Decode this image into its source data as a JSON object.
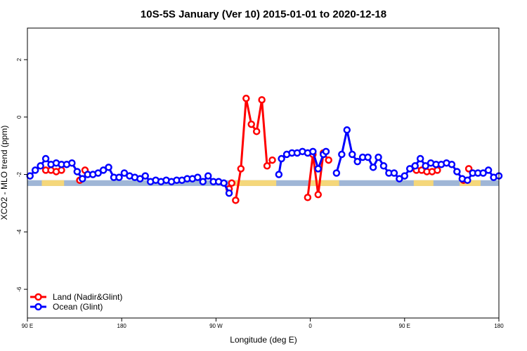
{
  "chart_data": {
    "type": "line",
    "title": "10S-5S January (Ver 10)   2015-01-01 to 2020-12-18",
    "xlabel": "Longitude (deg E)",
    "ylabel": "XCO2 - MLO trend (ppm)",
    "xlim": [
      90,
      450
    ],
    "ylim": [
      -7,
      3.1
    ],
    "x_ticks": [
      {
        "value": 90,
        "label": "90 E"
      },
      {
        "value": 162,
        "label": "180"
      },
      {
        "value": 234,
        "label": "90 W"
      },
      {
        "value": 306,
        "label": "0"
      },
      {
        "value": 378,
        "label": "90 E"
      },
      {
        "value": 450,
        "label": "180"
      }
    ],
    "y_ticks": [
      {
        "value": 2,
        "label": "2"
      },
      {
        "value": 0,
        "label": "0"
      },
      {
        "value": -2,
        "label": "-2"
      },
      {
        "value": -4,
        "label": "-4"
      },
      {
        "value": -6,
        "label": "-6"
      }
    ],
    "grid": false,
    "legend_position": "bottom-left",
    "colors": {
      "land": "#ff0000",
      "ocean": "#0000ff",
      "ocean_band": "#9fb6d6",
      "land_band": "#f5d77a"
    },
    "map_band": {
      "y_range": [
        -2.4,
        -2.2
      ],
      "land_segments": [
        [
          101,
          118
        ],
        [
          247,
          280
        ],
        [
          306,
          328
        ],
        [
          385,
          400
        ],
        [
          420,
          436
        ]
      ]
    },
    "series": [
      {
        "name": "Land (Nadir&Glint)",
        "color": "#ff0000",
        "segments": [
          [
            [
              104,
              -1.85
            ],
            [
              108,
              -1.85
            ],
            [
              112,
              -1.9
            ],
            [
              116,
              -1.85
            ]
          ],
          [
            [
              130,
              -2.2
            ]
          ],
          [
            [
              134,
              -1.85
            ]
          ],
          [
            [
              244,
              -2.5
            ],
            [
              246,
              -2.3
            ]
          ],
          [
            [
              249,
              -2.9
            ],
            [
              253,
              -1.8
            ],
            [
              257,
              0.65
            ],
            [
              261,
              -0.25
            ],
            [
              265,
              -0.5
            ],
            [
              269,
              0.6
            ],
            [
              273,
              -1.7
            ],
            [
              277,
              -1.5
            ]
          ],
          [
            [
              304,
              -2.8
            ],
            [
              308,
              -1.3
            ],
            [
              312,
              -2.7
            ],
            [
              316,
              -1.25
            ],
            [
              320,
              -1.5
            ]
          ],
          [
            [
              387,
              -1.85
            ],
            [
              391,
              -1.85
            ],
            [
              395,
              -1.9
            ],
            [
              399,
              -1.9
            ],
            [
              403,
              -1.85
            ]
          ],
          [
            [
              423,
              -2.2
            ]
          ],
          [
            [
              427,
              -1.8
            ]
          ]
        ]
      },
      {
        "name": "Ocean (Glint)",
        "color": "#0000ff",
        "segments": [
          [
            [
              92,
              -2.05
            ],
            [
              96,
              -1.85
            ],
            [
              100,
              -1.7
            ],
            [
              104,
              -1.45
            ],
            [
              108,
              -1.65
            ],
            [
              112,
              -1.6
            ],
            [
              116,
              -1.65
            ],
            [
              120,
              -1.65
            ],
            [
              124,
              -1.6
            ],
            [
              128,
              -1.9
            ],
            [
              132,
              -2.15
            ],
            [
              136,
              -2.0
            ],
            [
              140,
              -2.0
            ],
            [
              144,
              -1.95
            ],
            [
              148,
              -1.85
            ],
            [
              152,
              -1.75
            ],
            [
              156,
              -2.1
            ],
            [
              160,
              -2.1
            ],
            [
              164,
              -1.95
            ],
            [
              168,
              -2.05
            ],
            [
              172,
              -2.1
            ],
            [
              176,
              -2.15
            ],
            [
              180,
              -2.05
            ],
            [
              184,
              -2.25
            ],
            [
              188,
              -2.2
            ],
            [
              192,
              -2.25
            ],
            [
              196,
              -2.2
            ],
            [
              200,
              -2.25
            ],
            [
              204,
              -2.2
            ],
            [
              208,
              -2.2
            ],
            [
              212,
              -2.15
            ],
            [
              216,
              -2.15
            ],
            [
              220,
              -2.1
            ],
            [
              224,
              -2.25
            ],
            [
              228,
              -2.05
            ],
            [
              232,
              -2.25
            ],
            [
              236,
              -2.25
            ],
            [
              240,
              -2.3
            ],
            [
              244,
              -2.65
            ]
          ],
          [
            [
              282,
              -2.0
            ],
            [
              284,
              -1.45
            ],
            [
              288,
              -1.3
            ],
            [
              292,
              -1.25
            ],
            [
              296,
              -1.25
            ],
            [
              300,
              -1.2
            ],
            [
              304,
              -1.25
            ],
            [
              308,
              -1.2
            ],
            [
              312,
              -1.8
            ],
            [
              316,
              -1.3
            ],
            [
              318,
              -1.2
            ]
          ],
          [
            [
              326,
              -1.95
            ],
            [
              330,
              -1.3
            ],
            [
              334,
              -0.45
            ],
            [
              338,
              -1.3
            ],
            [
              342,
              -1.55
            ],
            [
              346,
              -1.4
            ],
            [
              350,
              -1.4
            ],
            [
              354,
              -1.75
            ],
            [
              358,
              -1.4
            ],
            [
              362,
              -1.7
            ],
            [
              366,
              -1.95
            ],
            [
              370,
              -1.95
            ],
            [
              374,
              -2.15
            ],
            [
              378,
              -2.05
            ],
            [
              382,
              -1.8
            ],
            [
              386,
              -1.7
            ],
            [
              390,
              -1.45
            ],
            [
              394,
              -1.7
            ],
            [
              398,
              -1.6
            ],
            [
              402,
              -1.65
            ],
            [
              406,
              -1.65
            ],
            [
              410,
              -1.6
            ],
            [
              414,
              -1.65
            ],
            [
              418,
              -1.9
            ],
            [
              422,
              -2.15
            ],
            [
              426,
              -2.2
            ],
            [
              430,
              -1.95
            ],
            [
              434,
              -1.95
            ],
            [
              438,
              -1.95
            ],
            [
              442,
              -1.85
            ],
            [
              446,
              -2.1
            ],
            [
              450,
              -2.05
            ]
          ]
        ]
      }
    ]
  }
}
